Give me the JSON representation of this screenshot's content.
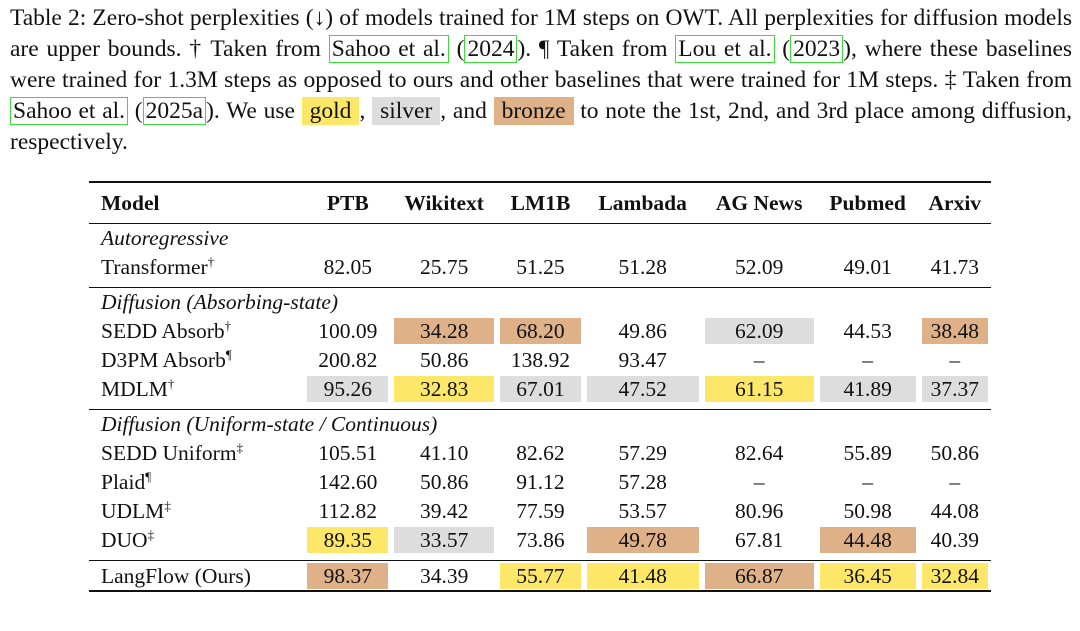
{
  "caption": {
    "part1": "Table 2: Zero-shot perplexities (↓) of models trained for 1M steps on OWT. All perplexities for diffusion models are upper bounds. † Taken from ",
    "cite1_author": "Sahoo et al.",
    "cite1_open": " (",
    "cite1_year": "2024",
    "part2": "). ¶ Taken from ",
    "cite2_author": "Lou et al.",
    "cite2_open": " (",
    "cite2_year": "2023",
    "part3": "), where these baselines were trained for 1.3M steps as opposed to ours and other baselines that were trained for 1M steps. ‡ Taken from ",
    "cite3_author": "Sahoo et al.",
    "cite3_open": " (",
    "cite3_year": "2025a",
    "part4": "). We use ",
    "gold": "gold",
    "sep1": ", ",
    "silver": "silver",
    "sep2": ", and ",
    "bronze": "bronze",
    "part5": " to note the 1st, 2nd, and 3rd place among diffusion, respectively."
  },
  "table": {
    "header": [
      "Model",
      "PTB",
      "Wikitext",
      "LM1B",
      "Lambada",
      "AG News",
      "Pubmed",
      "Arxiv"
    ],
    "groups": [
      {
        "title": "Autoregressive",
        "rows": [
          {
            "model": "Transformer",
            "mark": "†",
            "values": [
              "82.05",
              "25.75",
              "51.25",
              "51.28",
              "52.09",
              "49.01",
              "41.73"
            ],
            "ranks": [
              "",
              "",
              "",
              "",
              "",
              "",
              ""
            ]
          }
        ]
      },
      {
        "title": "Diffusion (Absorbing-state)",
        "rows": [
          {
            "model": "SEDD Absorb",
            "mark": "†",
            "values": [
              "100.09",
              "34.28",
              "68.20",
              "49.86",
              "62.09",
              "44.53",
              "38.48"
            ],
            "ranks": [
              "",
              "bronze",
              "bronze",
              "",
              "silver",
              "",
              "bronze"
            ]
          },
          {
            "model": "D3PM Absorb",
            "mark": "¶",
            "values": [
              "200.82",
              "50.86",
              "138.92",
              "93.47",
              "–",
              "–",
              "–"
            ],
            "ranks": [
              "",
              "",
              "",
              "",
              "",
              "",
              ""
            ]
          },
          {
            "model": "MDLM",
            "mark": "†",
            "values": [
              "95.26",
              "32.83",
              "67.01",
              "47.52",
              "61.15",
              "41.89",
              "37.37"
            ],
            "ranks": [
              "silver",
              "gold",
              "silver",
              "silver",
              "gold",
              "silver",
              "silver"
            ]
          }
        ]
      },
      {
        "title": "Diffusion (Uniform-state / Continuous)",
        "rows": [
          {
            "model": "SEDD Uniform",
            "mark": "‡",
            "values": [
              "105.51",
              "41.10",
              "82.62",
              "57.29",
              "82.64",
              "55.89",
              "50.86"
            ],
            "ranks": [
              "",
              "",
              "",
              "",
              "",
              "",
              ""
            ]
          },
          {
            "model": "Plaid",
            "mark": "¶",
            "values": [
              "142.60",
              "50.86",
              "91.12",
              "57.28",
              "–",
              "–",
              "–"
            ],
            "ranks": [
              "",
              "",
              "",
              "",
              "",
              "",
              ""
            ]
          },
          {
            "model": "UDLM",
            "mark": "‡",
            "values": [
              "112.82",
              "39.42",
              "77.59",
              "53.57",
              "80.96",
              "50.98",
              "44.08"
            ],
            "ranks": [
              "",
              "",
              "",
              "",
              "",
              "",
              ""
            ]
          },
          {
            "model": "DUO",
            "mark": "‡",
            "values": [
              "89.35",
              "33.57",
              "73.86",
              "49.78",
              "67.81",
              "44.48",
              "40.39"
            ],
            "ranks": [
              "gold",
              "silver",
              "",
              "bronze",
              "",
              "bronze",
              ""
            ]
          }
        ]
      }
    ],
    "final_row": {
      "model": "LangFlow (Ours)",
      "mark": "",
      "values": [
        "98.37",
        "34.39",
        "55.77",
        "41.48",
        "66.87",
        "36.45",
        "32.84"
      ],
      "ranks": [
        "bronze",
        "",
        "gold",
        "gold",
        "bronze",
        "gold",
        "gold"
      ]
    },
    "colors": {
      "gold": "#fde768",
      "silver": "#dddddd",
      "bronze": "#dfb189"
    }
  }
}
